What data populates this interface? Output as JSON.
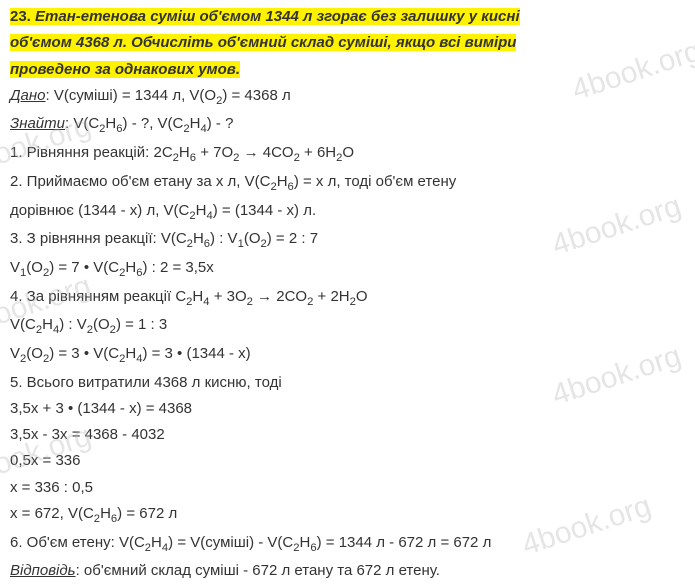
{
  "problem": {
    "number": "23.",
    "statement_l1": "Етан-етенова суміш об'ємом 1344 л згорає без залишку у кисні",
    "statement_l2": "об'ємом 4368 л. Обчисліть об'ємний склад суміші, якщо всі виміри",
    "statement_l3": "проведено за однакових умов."
  },
  "content": {
    "given_label": "Дано",
    "given_text": ": V(суміші) = 1344 л, V(O",
    "given_text2": ") = 4368 л",
    "find_label": "Знайти",
    "find_text": ": V(C",
    "find_text2": "H",
    "find_text3": ") - ?, V(C",
    "find_text4": "H",
    "find_text5": ") - ?",
    "step1": "1. Рівняння реакцій: 2C",
    "step1b": "H",
    "step1c": " + 7O",
    "step1d": "  → 4CO",
    "step1e": " + 6H",
    "step1f": "O",
    "step2a": "2. Приймаємо об'єм етану за х л, V(C",
    "step2b": "H",
    "step2c": ") = х л, тоді об'єм етену",
    "step2d": "дорівнює (1344 - х) л, V(C",
    "step2e": "H",
    "step2f": ") = (1344 - х) л.",
    "step3a": "3. З рівняння реакції: V(C",
    "step3b": "H",
    "step3c": ") : V",
    "step3d": "(O",
    "step3e": ") = 2 : 7",
    "step3f": "V",
    "step3g": "(O",
    "step3h": ") = 7 • V(C",
    "step3i": "H",
    "step3j": ") : 2 = 3,5х",
    "step4a": "4. За рівнянням реакції C",
    "step4b": "H",
    "step4c": " + 3O",
    "step4d": " → 2CO",
    "step4e": " + 2H",
    "step4f": "O",
    "step4g": "V(C",
    "step4h": "H",
    "step4i": ") : V",
    "step4j": "(O",
    "step4k": ") = 1 : 3",
    "step4l": "V",
    "step4m": "(O",
    "step4n": ") = 3 • V(C",
    "step4o": "H",
    "step4p": ") = 3 • (1344 - х)",
    "step5a": "5. Всього витратили 4368 л кисню, тоді",
    "step5b": "3,5х + 3 • (1344 - х) = 4368",
    "step5c": "3,5х - 3х = 4368 - 4032",
    "step5d": "0,5х = 336",
    "step5e": "х = 336 : 0,5",
    "step5f": "х = 672, V(C",
    "step5g": "H",
    "step5h": ") = 672 л",
    "step6a": "6. Об'єм етену: V(C",
    "step6b": "H",
    "step6c": ") = V(суміші) - V(C",
    "step6d": "H",
    "step6e": ") = 1344 л - 672 л = 672 л",
    "answer_label": "Відповідь",
    "answer_text": ": об'ємний склад суміші - 672 л етану та 672 л етену."
  },
  "watermark": "4book.org",
  "colors": {
    "highlight": "#fff200",
    "text": "#333333",
    "watermark": "rgba(180,180,180,0.35)"
  }
}
